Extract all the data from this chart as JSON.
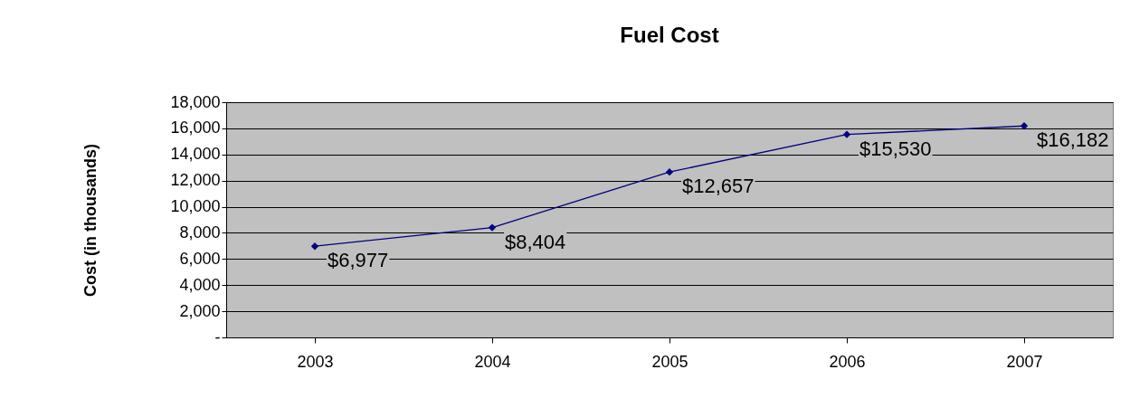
{
  "chart_data": {
    "type": "line",
    "title": "Fuel Cost",
    "ylabel": "Cost (in thousands)",
    "categories": [
      "2003",
      "2004",
      "2005",
      "2006",
      "2007"
    ],
    "series": [
      {
        "color": "#000080",
        "values": [
          6977,
          8404,
          12657,
          15530,
          16182
        ],
        "value_labels": [
          "$6,977",
          "$8,404",
          "$12,657",
          "$15,530",
          "$16,182"
        ]
      }
    ],
    "ylim": [
      0,
      18000
    ],
    "yticks": [
      {
        "value": 0,
        "label": "-"
      },
      {
        "value": 2000,
        "label": "2,000"
      },
      {
        "value": 4000,
        "label": "4,000"
      },
      {
        "value": 6000,
        "label": "6,000"
      },
      {
        "value": 8000,
        "label": "8,000"
      },
      {
        "value": 10000,
        "label": "10,000"
      },
      {
        "value": 12000,
        "label": "12,000"
      },
      {
        "value": 14000,
        "label": "14,000"
      },
      {
        "value": 16000,
        "label": "16,000"
      },
      {
        "value": 18000,
        "label": "18,000"
      }
    ],
    "grid": "y",
    "legend": false,
    "marker": "diamond",
    "line_style": "solid"
  }
}
